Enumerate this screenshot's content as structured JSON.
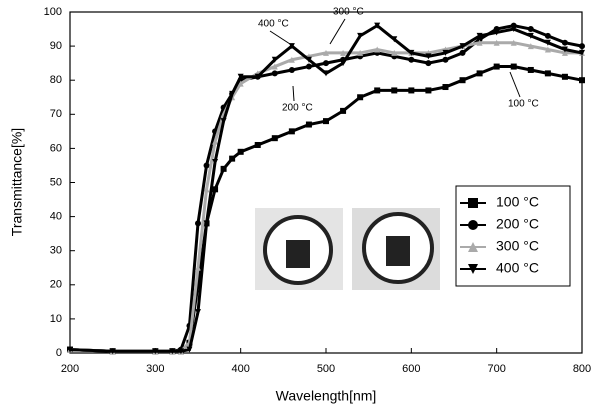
{
  "chart_data": {
    "type": "line",
    "x_label": "Wavelength[nm]",
    "y_label": "Transmittance[%]",
    "x": [
      200,
      250,
      300,
      320,
      330,
      340,
      350,
      360,
      370,
      380,
      390,
      400,
      420,
      440,
      460,
      480,
      500,
      520,
      540,
      560,
      580,
      600,
      620,
      640,
      660,
      680,
      700,
      720,
      740,
      760,
      780,
      800
    ],
    "series": [
      {
        "name": "100 °C",
        "color": "#000000",
        "marker": "square",
        "values": [
          1,
          0.5,
          0.5,
          0.5,
          0.5,
          3,
          20,
          38,
          48,
          54,
          57,
          59,
          61,
          63,
          65,
          67,
          68,
          71,
          75,
          77,
          77,
          77,
          77,
          78,
          80,
          82,
          84,
          84,
          83,
          82,
          81,
          80
        ]
      },
      {
        "name": "200 °C",
        "color": "#000000",
        "marker": "circle",
        "values": [
          1,
          0.5,
          0.5,
          0.5,
          1,
          8,
          38,
          55,
          65,
          72,
          76,
          80,
          81,
          82,
          83,
          84,
          85,
          86,
          87,
          88,
          87,
          86,
          85,
          86,
          88,
          92,
          95,
          96,
          95,
          93,
          91,
          90
        ]
      },
      {
        "name": "300 °C",
        "color": "#aaaaaa",
        "marker": "triangle",
        "values": [
          1,
          0.5,
          0.5,
          0.5,
          0.5,
          3,
          25,
          48,
          62,
          70,
          75,
          79,
          82,
          84,
          86,
          87,
          88,
          88,
          88,
          89,
          88,
          88,
          88,
          89,
          90,
          91,
          91,
          91,
          90,
          89,
          88,
          88
        ]
      },
      {
        "name": "400 °C",
        "color": "#000000",
        "marker": "triangle-down",
        "values": [
          1,
          0.5,
          0.5,
          0.5,
          0.5,
          1,
          12,
          38,
          56,
          68,
          76,
          81,
          81,
          86,
          90,
          86,
          82,
          85,
          93,
          96,
          92,
          88,
          87,
          88,
          90,
          93,
          94,
          95,
          93,
          91,
          89,
          88
        ]
      }
    ],
    "annotations": [
      "400 °C",
      "300 °C",
      "200 °C",
      "100 °C"
    ],
    "xlim": [
      200,
      800
    ],
    "xticks": [
      200,
      300,
      400,
      500,
      600,
      700,
      800
    ],
    "ylim": [
      0,
      100
    ],
    "yticks": [
      0,
      10,
      20,
      30,
      40,
      50,
      60,
      70,
      80,
      90,
      100
    ],
    "grid": false,
    "legend": "right"
  }
}
